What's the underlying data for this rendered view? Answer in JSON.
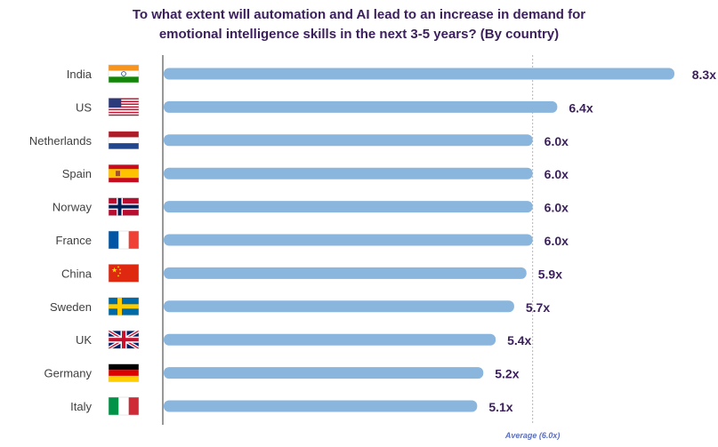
{
  "chart_data": {
    "type": "bar",
    "orientation": "horizontal",
    "title_lines": [
      "To what extent will automation and AI lead to an increase in demand for",
      "emotional intelligence skills in the next 3-5 years? (By country)"
    ],
    "categories": [
      "India",
      "US",
      "Netherlands",
      "Spain",
      "Norway",
      "France",
      "China",
      "Sweden",
      "UK",
      "Germany",
      "Italy"
    ],
    "flags": [
      "india-flag-icon",
      "us-flag-icon",
      "netherlands-flag-icon",
      "spain-flag-icon",
      "norway-flag-icon",
      "france-flag-icon",
      "china-flag-icon",
      "sweden-flag-icon",
      "uk-flag-icon",
      "germany-flag-icon",
      "italy-flag-icon"
    ],
    "values": [
      8.3,
      6.4,
      6.0,
      6.0,
      6.0,
      6.0,
      5.9,
      5.7,
      5.4,
      5.2,
      5.1
    ],
    "value_labels": [
      "8.3x",
      "6.4x",
      "6.0x",
      "6.0x",
      "6.0x",
      "6.0x",
      "5.9x",
      "5.7x",
      "5.4x",
      "5.2x",
      "5.1x"
    ],
    "xlim": [
      0,
      8.3
    ],
    "reference_line": {
      "value": 6.0,
      "label": "Average (6.0x)"
    },
    "legend": "none",
    "grid": false,
    "colors": {
      "bar": "#8ab6de",
      "title": "#3b1f5c",
      "value_label": "#3b1f5c",
      "reference_line": "#b5b5b5",
      "axis": "#555555",
      "category_label": "#404040",
      "reference_label": "#5a6fc4"
    }
  }
}
